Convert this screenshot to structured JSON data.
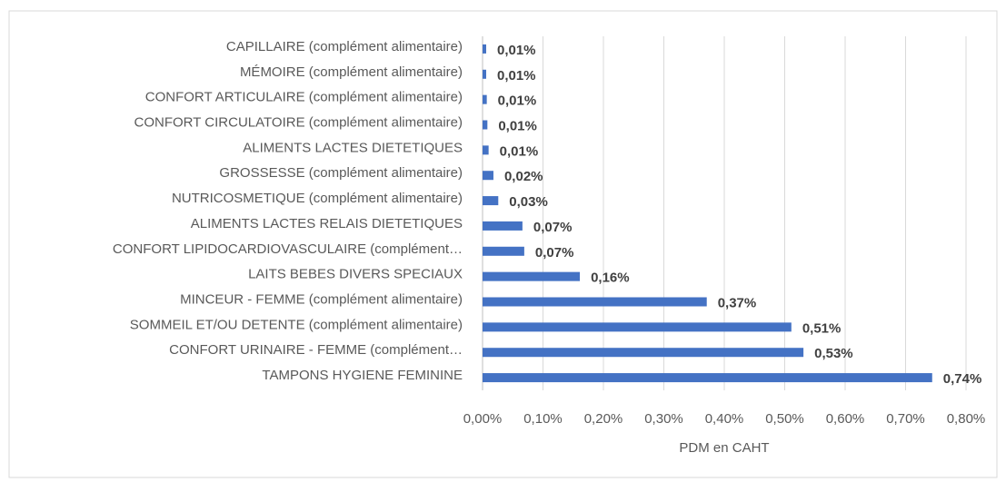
{
  "chart_data": {
    "type": "bar",
    "orientation": "horizontal",
    "x_label": "PDM en CAHT",
    "categories": [
      "CAPILLAIRE (complément alimentaire)",
      "MÉMOIRE (complément alimentaire)",
      "CONFORT ARTICULAIRE (complément alimentaire)",
      "CONFORT CIRCULATOIRE (complément alimentaire)",
      "ALIMENTS LACTES DIETETIQUES",
      "GROSSESSE (complément alimentaire)",
      "NUTRICOSMETIQUE (complément alimentaire)",
      "ALIMENTS LACTES RELAIS DIETETIQUES",
      "CONFORT LIPIDOCARDIOVASCULAIRE (complément…",
      "LAITS BEBES DIVERS SPECIAUX",
      "MINCEUR - FEMME (complément alimentaire)",
      "SOMMEIL ET/OU DETENTE (complément alimentaire)",
      "CONFORT URINAIRE - FEMME (complément…",
      "TAMPONS HYGIENE FEMININE"
    ],
    "values": [
      0.006,
      0.006,
      0.007,
      0.008,
      0.01,
      0.018,
      0.026,
      0.066,
      0.069,
      0.161,
      0.371,
      0.511,
      0.531,
      0.744
    ],
    "value_labels": [
      "0,01%",
      "0,01%",
      "0,01%",
      "0,01%",
      "0,01%",
      "0,02%",
      "0,03%",
      "0,07%",
      "0,07%",
      "0,16%",
      "0,37%",
      "0,51%",
      "0,53%",
      "0,74%"
    ],
    "color": "#4472c4",
    "xlim": [
      0,
      0.8
    ],
    "xticks": [
      {
        "value": 0,
        "label": "0,00%"
      },
      {
        "value": 0.1,
        "label": "0,10%"
      },
      {
        "value": 0.2,
        "label": "0,20%"
      },
      {
        "value": 0.3,
        "label": "0,30%"
      },
      {
        "value": 0.4,
        "label": "0,40%"
      },
      {
        "value": 0.5,
        "label": "0,50%"
      },
      {
        "value": 0.6,
        "label": "0,60%"
      },
      {
        "value": 0.7,
        "label": "0,70%"
      },
      {
        "value": 0.8,
        "label": "0,80%"
      }
    ],
    "grid": true
  }
}
